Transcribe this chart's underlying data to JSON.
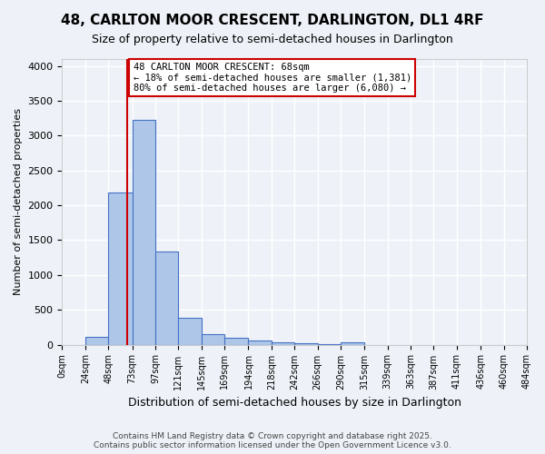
{
  "title": "48, CARLTON MOOR CRESCENT, DARLINGTON, DL1 4RF",
  "subtitle": "Size of property relative to semi-detached houses in Darlington",
  "xlabel": "Distribution of semi-detached houses by size in Darlington",
  "ylabel": "Number of semi-detached properties",
  "footer_line1": "Contains HM Land Registry data © Crown copyright and database right 2025.",
  "footer_line2": "Contains public sector information licensed under the Open Government Licence v3.0.",
  "bin_edges": [
    0,
    24,
    48,
    73,
    97,
    121,
    145,
    169,
    194,
    218,
    242,
    266,
    290,
    315,
    339,
    363,
    387,
    411,
    436,
    460,
    484
  ],
  "bin_labels": [
    "0sqm",
    "24sqm",
    "48sqm",
    "73sqm",
    "97sqm",
    "121sqm",
    "145sqm",
    "169sqm",
    "194sqm",
    "218sqm",
    "242sqm",
    "266sqm",
    "290sqm",
    "315sqm",
    "339sqm",
    "363sqm",
    "387sqm",
    "411sqm",
    "436sqm",
    "460sqm",
    "484sqm"
  ],
  "bar_values": [
    0,
    110,
    2180,
    3230,
    1340,
    390,
    155,
    95,
    55,
    30,
    15,
    5,
    30,
    0,
    0,
    0,
    0,
    0,
    0,
    0
  ],
  "bar_color": "#aec6e8",
  "bar_edge_color": "#4472c4",
  "bg_color": "#eef2f8",
  "grid_color": "#ffffff",
  "property_line_x": 68,
  "property_line_color": "#cc0000",
  "annotation_text": "48 CARLTON MOOR CRESCENT: 68sqm\n← 18% of semi-detached houses are smaller (1,381)\n80% of semi-detached houses are larger (6,080) →",
  "annotation_box_color": "#ffffff",
  "annotation_box_edge": "#cc0000",
  "ylim": [
    0,
    4100
  ],
  "yticks": [
    0,
    500,
    1000,
    1500,
    2000,
    2500,
    3000,
    3500,
    4000
  ]
}
